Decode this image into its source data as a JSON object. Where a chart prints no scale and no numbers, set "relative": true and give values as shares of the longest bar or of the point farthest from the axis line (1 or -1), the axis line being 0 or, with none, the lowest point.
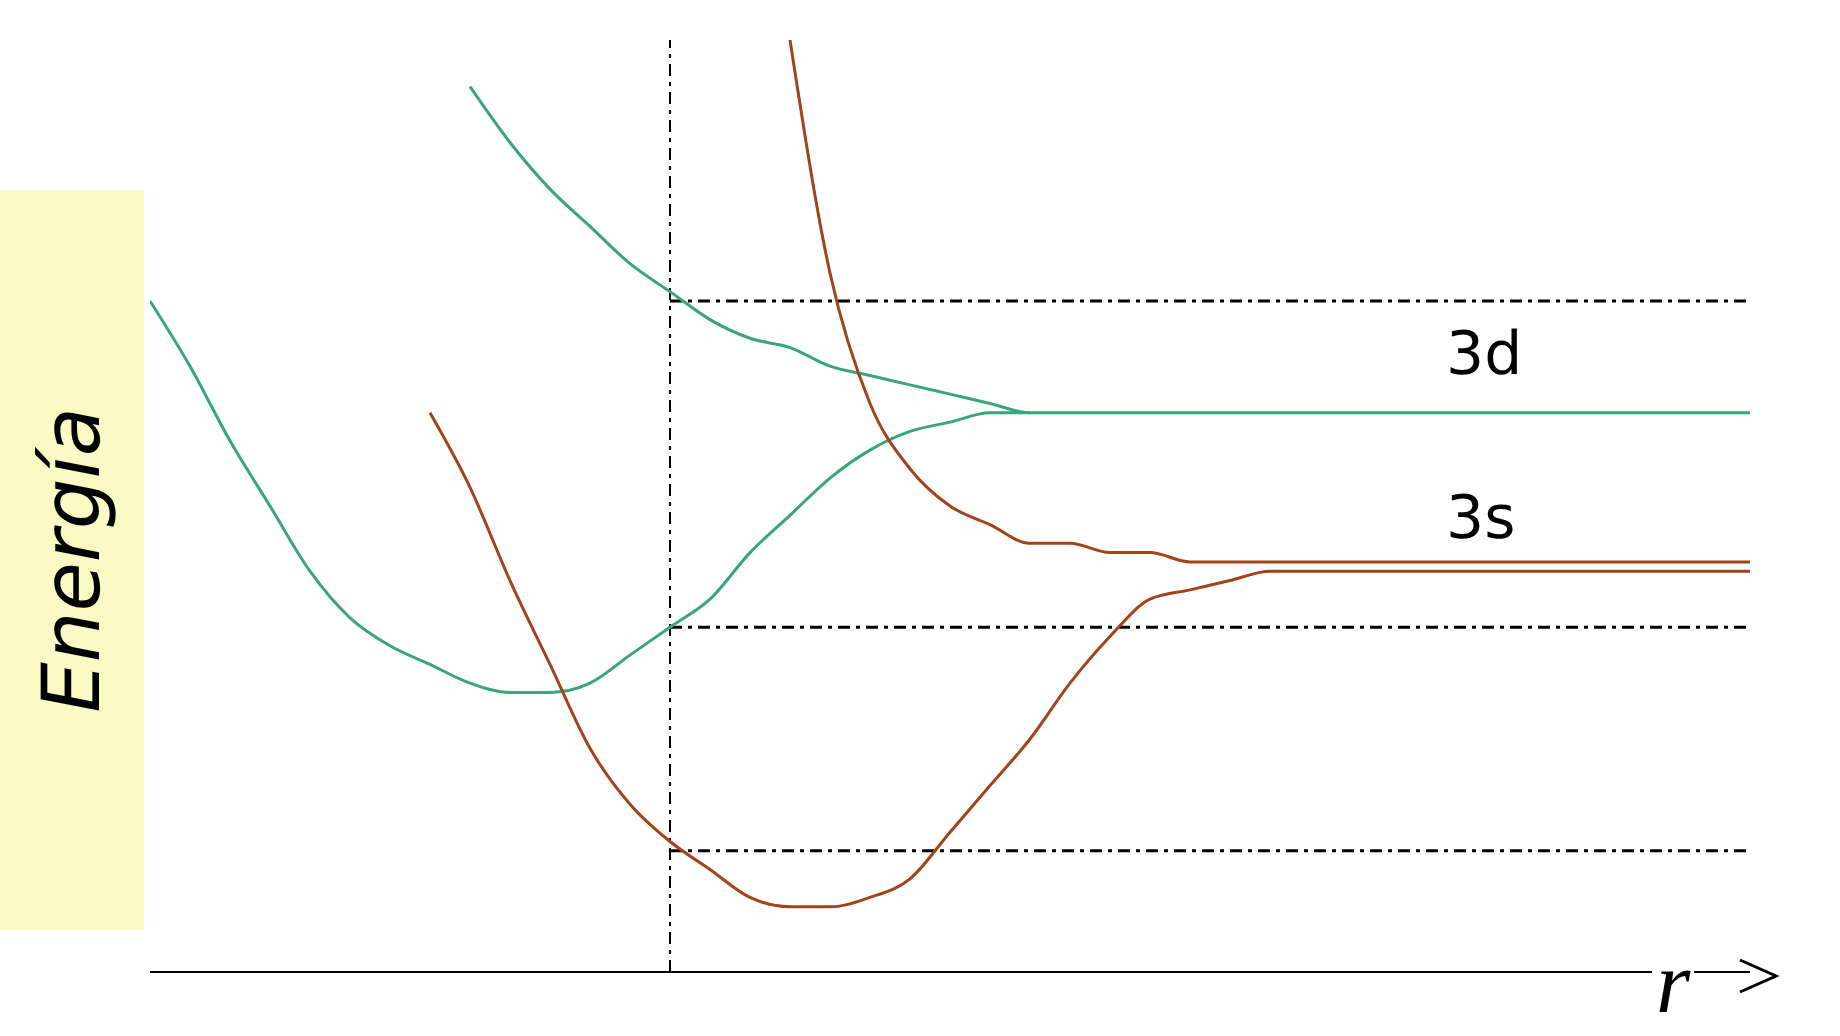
{
  "chart_data": {
    "type": "line",
    "relative": true,
    "ylabel": "Energía",
    "xlabel": "r",
    "categories": [
      null,
      null,
      null,
      null,
      null,
      null,
      null,
      null,
      null,
      null,
      null,
      null,
      null,
      null,
      null,
      null,
      null,
      null,
      null,
      null,
      null,
      null,
      null,
      null,
      null,
      null,
      null,
      null,
      null,
      null,
      null,
      null,
      null,
      null,
      null,
      null,
      null,
      null,
      null,
      null,
      null
    ],
    "series": [
      {
        "color": "#3aa57a",
        "values": [
          null,
          null,
          null,
          null,
          null,
          null,
          null,
          null,
          0.95,
          0.89,
          0.84,
          0.8,
          0.76,
          0.73,
          0.7,
          0.68,
          0.67,
          0.65,
          0.64,
          0.63,
          0.62,
          0.61,
          0.6,
          0.6,
          0.6,
          0.6,
          0.6,
          0.6,
          0.6,
          0.6,
          0.6,
          0.6,
          0.6,
          0.6,
          0.6,
          0.6,
          0.6,
          0.6,
          0.6,
          0.6,
          0.6
        ]
      },
      {
        "color": "#3aa57a",
        "values": [
          0.72,
          0.65,
          0.57,
          0.5,
          0.43,
          0.38,
          0.35,
          0.33,
          0.31,
          0.3,
          0.3,
          0.31,
          0.34,
          0.37,
          0.4,
          0.45,
          0.49,
          0.53,
          0.56,
          0.58,
          0.59,
          0.6,
          0.6,
          null,
          null,
          null,
          null,
          null,
          null,
          null,
          null,
          null,
          null,
          null,
          null,
          null,
          null,
          null,
          null,
          null,
          null
        ]
      },
      {
        "color": "#a0441a",
        "values": [
          null,
          null,
          null,
          null,
          null,
          null,
          null,
          null,
          null,
          null,
          null,
          null,
          null,
          null,
          null,
          null,
          1.0,
          0.75,
          0.61,
          0.54,
          0.5,
          0.48,
          0.46,
          0.46,
          0.45,
          0.45,
          0.44,
          0.44,
          0.44,
          0.44,
          0.44,
          0.44,
          0.44,
          0.44,
          0.44,
          0.44,
          0.44,
          0.44,
          0.44,
          0.44,
          0.44
        ]
      },
      {
        "color": "#a0441a",
        "values": [
          null,
          null,
          null,
          null,
          null,
          null,
          null,
          0.6,
          0.52,
          0.42,
          0.33,
          0.24,
          0.18,
          0.14,
          0.11,
          0.08,
          0.07,
          0.07,
          0.08,
          0.1,
          0.15,
          0.2,
          0.25,
          0.31,
          0.36,
          0.4,
          0.41,
          0.42,
          0.43,
          0.43,
          0.43,
          0.43,
          0.43,
          0.43,
          0.43,
          0.43,
          0.43,
          0.43,
          0.43,
          0.43,
          0.43
        ]
      }
    ],
    "ref_lines": [
      {
        "axis": "y",
        "value": 0.72,
        "color": "#000000",
        "line_style": "dashed"
      },
      {
        "axis": "y",
        "value": 0.37,
        "color": "#000000",
        "line_style": "dashed"
      },
      {
        "axis": "y",
        "value": 0.13,
        "color": "#000000",
        "line_style": "dashed"
      }
    ],
    "annotations": [
      "3d",
      "3s"
    ]
  }
}
